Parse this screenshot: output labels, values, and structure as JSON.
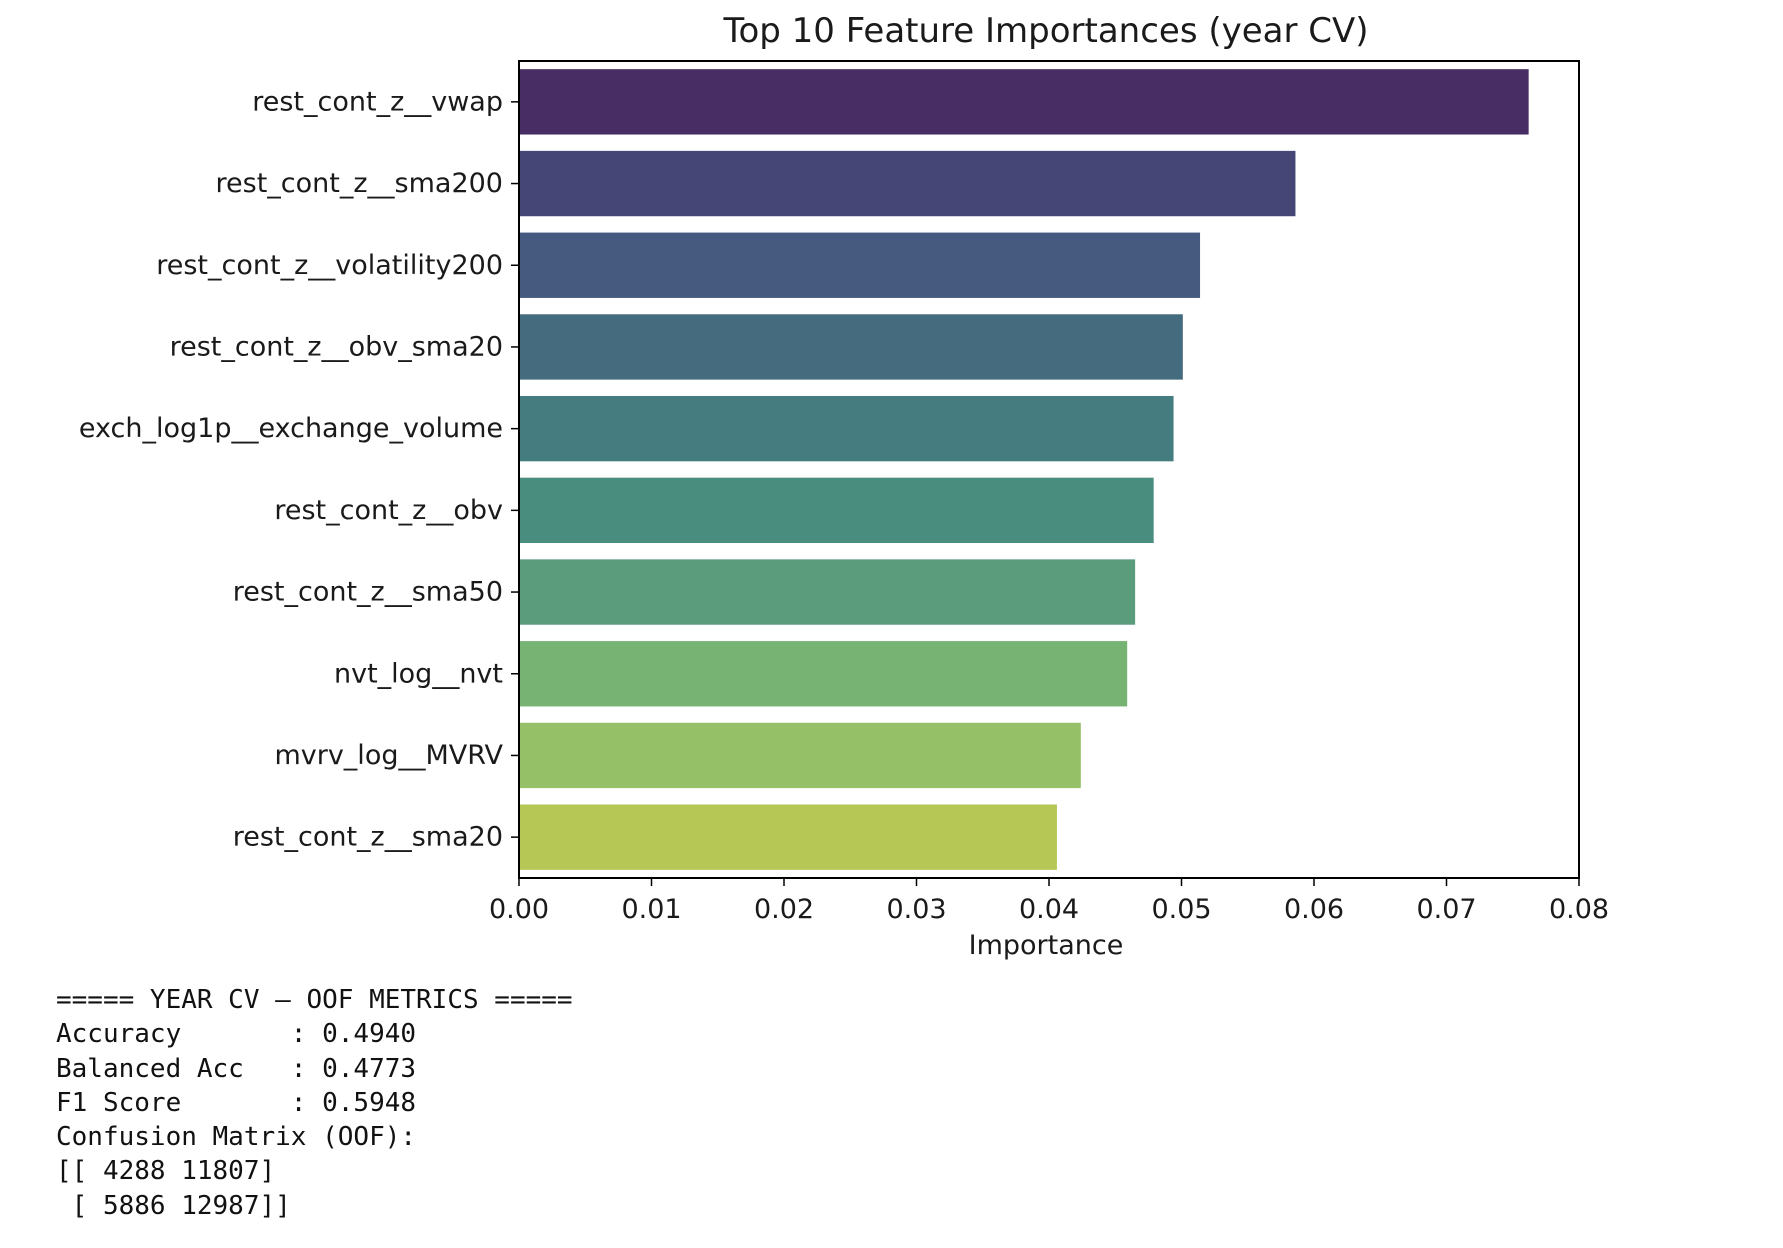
{
  "chart_data": {
    "type": "bar",
    "orientation": "horizontal",
    "title": "Top 10 Feature Importances (year CV)",
    "xlabel": "Importance",
    "ylabel": "",
    "categories": [
      "rest_cont_z__vwap",
      "rest_cont_z__sma200",
      "rest_cont_z__volatility200",
      "rest_cont_z__obv_sma20",
      "exch_log1p__exchange_volume",
      "rest_cont_z__obv",
      "rest_cont_z__sma50",
      "nvt_log__nvt",
      "mvrv_log__MVRV",
      "rest_cont_z__sma20"
    ],
    "values": [
      0.0762,
      0.0586,
      0.0514,
      0.0501,
      0.0494,
      0.0479,
      0.0465,
      0.0459,
      0.0424,
      0.0406
    ],
    "colors": [
      "#472d63",
      "#464676",
      "#465a7f",
      "#456b7e",
      "#457c7f",
      "#488d7d",
      "#5a9c7c",
      "#77b474",
      "#96c067",
      "#b7c756"
    ],
    "xlim": [
      0,
      0.08
    ],
    "xticks": [
      "0.00",
      "0.01",
      "0.02",
      "0.03",
      "0.04",
      "0.05",
      "0.06",
      "0.07",
      "0.08"
    ],
    "grid": false,
    "legend": "none"
  },
  "console": {
    "lines": [
      "===== YEAR CV — OOF METRICS =====",
      "Accuracy       : 0.4940",
      "Balanced Acc   : 0.4773",
      "F1 Score       : 0.5948",
      "Confusion Matrix (OOF):",
      "[[ 4288 11807]",
      " [ 5886 12987]]"
    ]
  }
}
